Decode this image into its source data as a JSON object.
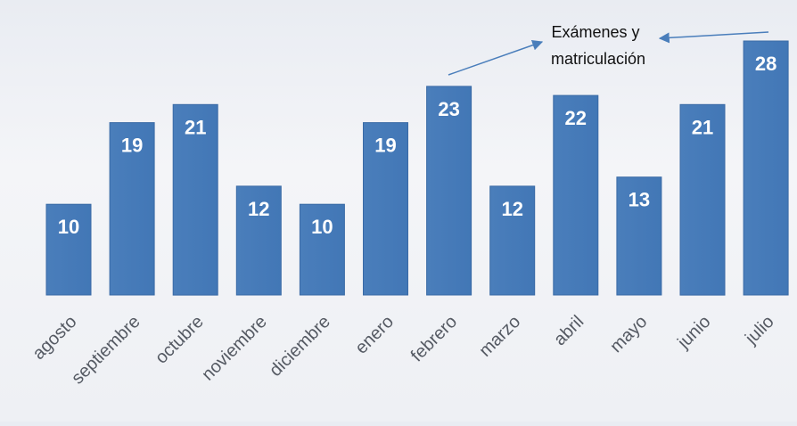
{
  "chart_data": {
    "type": "bar",
    "categories": [
      "agosto",
      "septiembre",
      "octubre",
      "noviembre",
      "diciembre",
      "enero",
      "febrero",
      "marzo",
      "abril",
      "mayo",
      "junio",
      "julio"
    ],
    "values": [
      10,
      19,
      21,
      12,
      10,
      19,
      23,
      12,
      22,
      13,
      21,
      28
    ],
    "data_labels": [
      "10",
      "19",
      "21",
      "12",
      "10",
      "19",
      "23",
      "12",
      "22",
      "13",
      "21",
      "28"
    ],
    "ylim": [
      0,
      28
    ],
    "grid": false,
    "legend": "none",
    "colors": {
      "bar": "#4a7ebb",
      "bar_edge": "#3a6aa5",
      "label": "#ffffff"
    },
    "annotation": {
      "line1": "Exámenes y",
      "line2": "matriculación",
      "targets": [
        "febrero",
        "julio"
      ]
    }
  }
}
